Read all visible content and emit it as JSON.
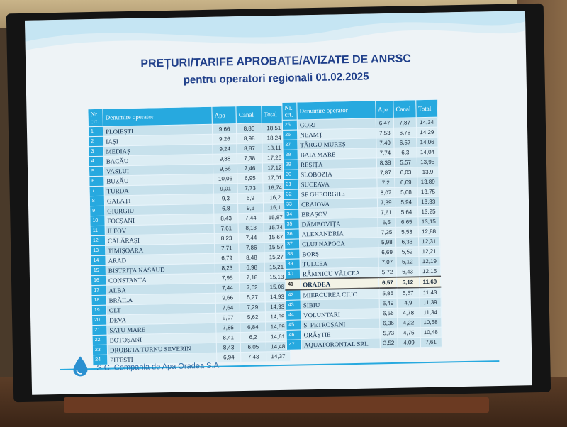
{
  "title_line1": "PREȚURI/TARIFE APROBATE/AVIZATE DE ANRSC",
  "title_line2": "pentru operatori regionali 01.02.2025",
  "columns": [
    "Nr. crt.",
    "Denumire operator",
    "Apa",
    "Canal",
    "Total"
  ],
  "right_columns": [
    "Nr. crt.",
    "Denumire operator",
    "Apa",
    "Canal",
    "Total"
  ],
  "left_rows": [
    [
      "1",
      "PLOIEȘTI",
      "9,66",
      "8,85",
      "18,51"
    ],
    [
      "2",
      "IAȘI",
      "9,26",
      "8,98",
      "18,24"
    ],
    [
      "3",
      "MEDIAȘ",
      "9,24",
      "8,87",
      "18,11"
    ],
    [
      "4",
      "BACĂU",
      "9,88",
      "7,38",
      "17,26"
    ],
    [
      "5",
      "VASLUI",
      "9,66",
      "7,46",
      "17,12"
    ],
    [
      "6",
      "BUZĂU",
      "10,06",
      "6,95",
      "17,01"
    ],
    [
      "7",
      "TURDA",
      "9,01",
      "7,73",
      "16,74"
    ],
    [
      "8",
      "GALAȚI",
      "9,3",
      "6,9",
      "16,2"
    ],
    [
      "9",
      "GIURGIU",
      "6,8",
      "9,3",
      "16,1"
    ],
    [
      "10",
      "FOCȘANI",
      "8,43",
      "7,44",
      "15,87"
    ],
    [
      "11",
      "ILFOV",
      "7,61",
      "8,13",
      "15,74"
    ],
    [
      "12",
      "CĂLĂRAȘI",
      "8,23",
      "7,44",
      "15,67"
    ],
    [
      "13",
      "TIMIȘOARA",
      "7,71",
      "7,86",
      "15,57"
    ],
    [
      "14",
      "ARAD",
      "6,79",
      "8,48",
      "15,27"
    ],
    [
      "15",
      "BISTRIȚA NĂSĂUD",
      "8,23",
      "6,98",
      "15,21"
    ],
    [
      "16",
      "CONSTANȚA",
      "7,95",
      "7,18",
      "15,13"
    ],
    [
      "17",
      "ALBA",
      "7,44",
      "7,62",
      "15,06"
    ],
    [
      "18",
      "BRĂILA",
      "9,66",
      "5,27",
      "14,93"
    ],
    [
      "19",
      "OLT",
      "7,64",
      "7,29",
      "14,93"
    ],
    [
      "20",
      "DEVA",
      "9,07",
      "5,62",
      "14,69"
    ],
    [
      "21",
      "SATU MARE",
      "7,85",
      "6,84",
      "14,69"
    ],
    [
      "22",
      "BOTOȘANI",
      "8,41",
      "6,2",
      "14,61"
    ],
    [
      "23",
      "DROBETA TURNU SEVERIN",
      "8,43",
      "6,05",
      "14,48"
    ],
    [
      "24",
      "PITEȘTI",
      "6,94",
      "7,43",
      "14,37"
    ]
  ],
  "right_rows": [
    [
      "25",
      "GORJ",
      "6,47",
      "7,87",
      "14,34"
    ],
    [
      "26",
      "NEAMȚ",
      "7,53",
      "6,76",
      "14,29"
    ],
    [
      "27",
      "TÂRGU MUREȘ",
      "7,49",
      "6,57",
      "14,06"
    ],
    [
      "28",
      "BAIA MARE",
      "7,74",
      "6,3",
      "14,04"
    ],
    [
      "29",
      "REȘIȚA",
      "8,38",
      "5,57",
      "13,95"
    ],
    [
      "30",
      "SLOBOZIA",
      "7,87",
      "6,03",
      "13,9"
    ],
    [
      "31",
      "SUCEAVA",
      "7,2",
      "6,69",
      "13,89"
    ],
    [
      "32",
      "SF GHEORGHE",
      "8,07",
      "5,68",
      "13,75"
    ],
    [
      "33",
      "CRAIOVA",
      "7,39",
      "5,94",
      "13,33"
    ],
    [
      "34",
      "BRAȘOV",
      "7,61",
      "5,64",
      "13,25"
    ],
    [
      "35",
      "DÂMBOVIȚA",
      "6,5",
      "6,65",
      "13,15"
    ],
    [
      "36",
      "ALEXANDRIA",
      "7,35",
      "5,53",
      "12,88"
    ],
    [
      "37",
      "CLUJ NAPOCA",
      "5,98",
      "6,33",
      "12,31"
    ],
    [
      "38",
      "BORȘ",
      "6,69",
      "5,52",
      "12,21"
    ],
    [
      "39",
      "TULCEA",
      "7,07",
      "5,12",
      "12,19"
    ],
    [
      "40",
      "RÂMNICU VÂLCEA",
      "5,72",
      "6,43",
      "12,15"
    ],
    [
      "41",
      "ORADEA",
      "6,57",
      "5,12",
      "11,69"
    ],
    [
      "42",
      "MIERCUREA CIUC",
      "5,86",
      "5,57",
      "11,43"
    ],
    [
      "43",
      "SIBIU",
      "6,49",
      "4,9",
      "11,39"
    ],
    [
      "44",
      "VOLUNTARI",
      "6,56",
      "4,78",
      "11,34"
    ],
    [
      "45",
      "S. PETROȘANI",
      "6,36",
      "4,22",
      "10,58"
    ],
    [
      "46",
      "ORĂȘTIE",
      "5,73",
      "4,75",
      "10,48"
    ],
    [
      "47",
      "AQUATORONTAL SRL",
      "3,52",
      "4,09",
      "7,61"
    ]
  ],
  "highlight_row_index": 16,
  "company": "S.C. Compania de Apa Oradea S.A.",
  "colors": {
    "header": "#27a9df",
    "title": "#1f3f8a",
    "company": "#2a6aa6"
  }
}
